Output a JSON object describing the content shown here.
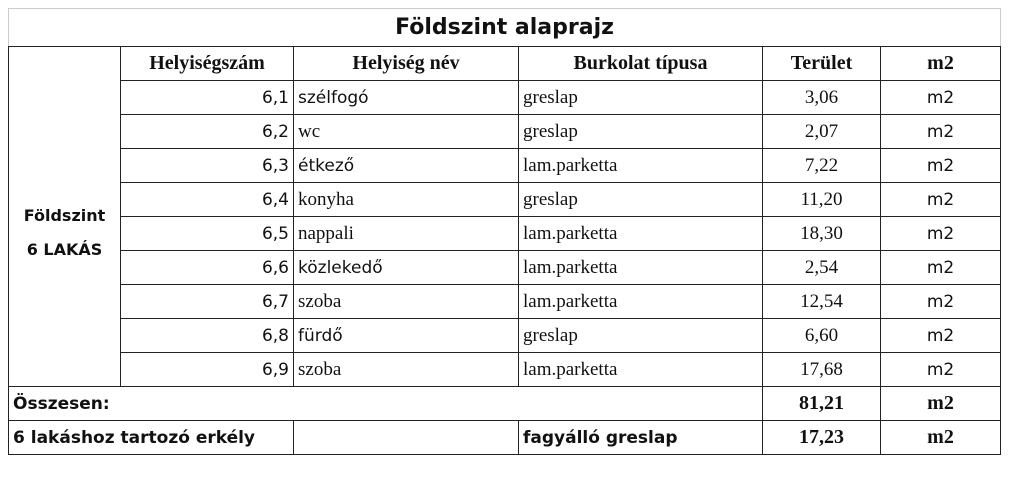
{
  "title": "Földszint alaprajz",
  "headers": [
    "Helyiségszám",
    "Helyiség név",
    "Burkolat típusa",
    "Terület",
    "m2"
  ],
  "group_label": [
    "Földszint",
    "6 LAKÁS"
  ],
  "rows": [
    {
      "num": "6,1",
      "name": "szélfogó",
      "floor": "greslap",
      "area": "3,06",
      "unit": "m2"
    },
    {
      "num": "6,2",
      "name": "wc",
      "floor": "greslap",
      "area": "2,07",
      "unit": "m2"
    },
    {
      "num": "6,3",
      "name": "étkező",
      "floor": "lam.parketta",
      "area": "7,22",
      "unit": "m2"
    },
    {
      "num": "6,4",
      "name": "konyha",
      "floor": "greslap",
      "area": "11,20",
      "unit": "m2"
    },
    {
      "num": "6,5",
      "name": "nappali",
      "floor": "lam.parketta",
      "area": "18,30",
      "unit": "m2"
    },
    {
      "num": "6,6",
      "name": "közlekedő",
      "floor": "lam.parketta",
      "area": "2,54",
      "unit": "m2"
    },
    {
      "num": "6,7",
      "name": "szoba",
      "floor": "lam.parketta",
      "area": "12,54",
      "unit": "m2"
    },
    {
      "num": "6,8",
      "name": "fürdő",
      "floor": "greslap",
      "area": "6,60",
      "unit": "m2"
    },
    {
      "num": "6,9",
      "name": "szoba",
      "floor": "lam.parketta",
      "area": "17,68",
      "unit": "m2"
    }
  ],
  "total": {
    "label": "Összesen:",
    "area": "81,21",
    "unit": "m2"
  },
  "balcony": {
    "label": "6 lakáshoz tartozó erkély",
    "floor": "fagyálló greslap",
    "area": "17,23",
    "unit": "m2"
  }
}
